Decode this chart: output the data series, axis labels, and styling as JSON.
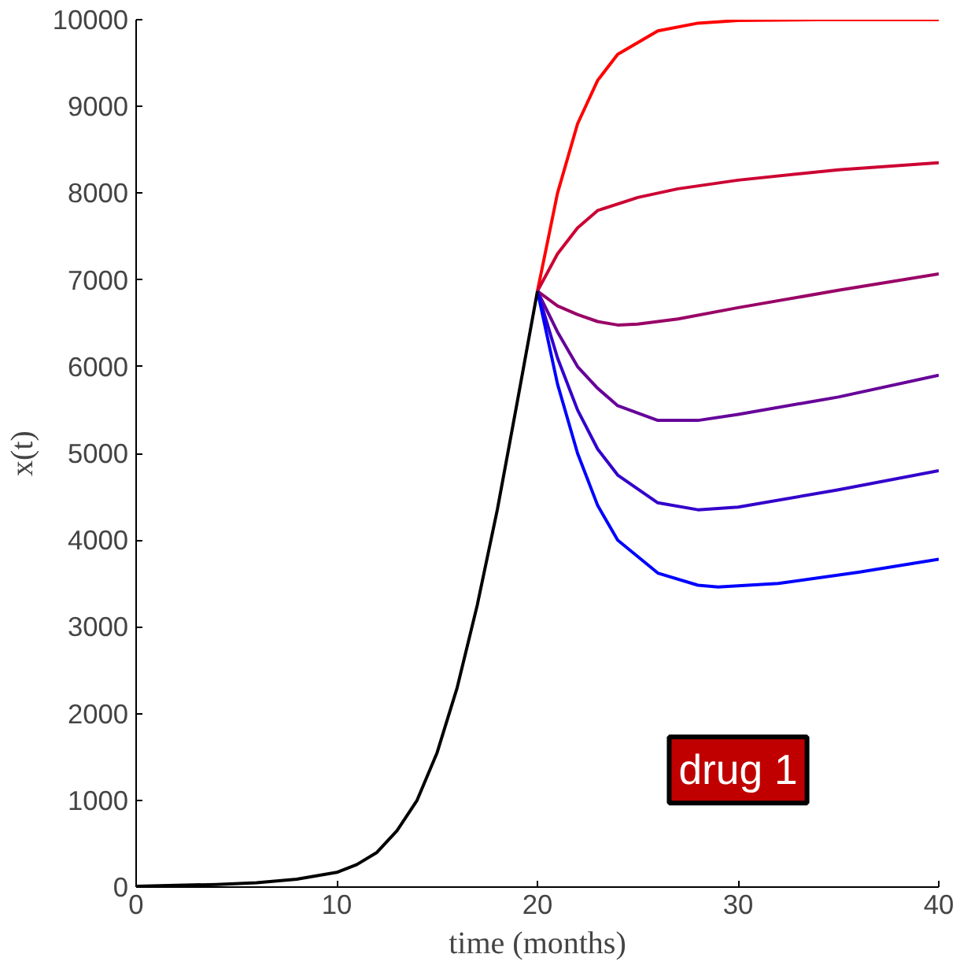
{
  "chart_data": {
    "type": "line",
    "xlabel": "time (months)",
    "ylabel": "x(t)",
    "xlim": [
      0,
      40
    ],
    "ylim": [
      0,
      10000
    ],
    "xticks": [
      0,
      10,
      20,
      30,
      40
    ],
    "yticks": [
      0,
      1000,
      2000,
      3000,
      4000,
      5000,
      6000,
      7000,
      8000,
      9000,
      10000
    ],
    "grid": false,
    "marker": "none",
    "line_style": "solid",
    "annotations": [
      "drug 1"
    ],
    "series": [
      {
        "color": "#ff0000",
        "x": [
          20,
          21,
          22,
          23,
          24,
          26,
          28,
          30,
          34,
          40
        ],
        "values": [
          6870,
          8000,
          8800,
          9300,
          9600,
          9870,
          9960,
          9990,
          10000,
          10000
        ]
      },
      {
        "color": "#cc0033",
        "x": [
          20,
          21,
          22,
          23,
          25,
          27,
          30,
          35,
          40
        ],
        "values": [
          6870,
          7300,
          7600,
          7800,
          7950,
          8050,
          8150,
          8270,
          8350
        ]
      },
      {
        "color": "#990066",
        "x": [
          20,
          21,
          22,
          23,
          24,
          25,
          27,
          30,
          35,
          40
        ],
        "values": [
          6870,
          6700,
          6600,
          6520,
          6480,
          6490,
          6550,
          6680,
          6880,
          7070
        ]
      },
      {
        "color": "#660099",
        "x": [
          20,
          21,
          22,
          23,
          24,
          26,
          28,
          30,
          35,
          40
        ],
        "values": [
          6870,
          6400,
          6000,
          5750,
          5550,
          5380,
          5380,
          5450,
          5650,
          5900
        ]
      },
      {
        "color": "#3300cc",
        "x": [
          20,
          21,
          22,
          23,
          24,
          26,
          28,
          30,
          35,
          40
        ],
        "values": [
          6870,
          6100,
          5500,
          5050,
          4750,
          4430,
          4350,
          4380,
          4580,
          4800
        ]
      },
      {
        "color": "#0000ff",
        "x": [
          20,
          21,
          22,
          23,
          24,
          26,
          28,
          29,
          32,
          36,
          40
        ],
        "values": [
          6870,
          5800,
          5000,
          4400,
          4000,
          3620,
          3480,
          3460,
          3500,
          3630,
          3780
        ]
      },
      {
        "color": "#000000",
        "x": [
          0,
          2,
          4,
          6,
          8,
          10,
          11,
          12,
          13,
          14,
          15,
          16,
          17,
          18,
          19,
          20
        ],
        "values": [
          10,
          20,
          30,
          50,
          90,
          170,
          260,
          400,
          650,
          1000,
          1550,
          2300,
          3250,
          4350,
          5600,
          6870
        ]
      }
    ]
  }
}
